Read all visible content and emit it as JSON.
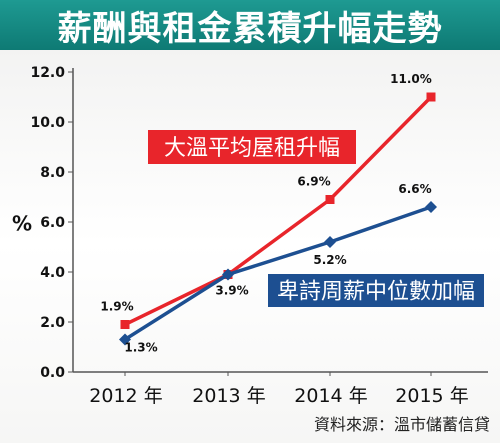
{
  "title": "薪酬與租金累積升幅走勢",
  "source": "資料來源：溫市儲蓄信貸",
  "colors": {
    "title_bg": "#12867f",
    "rent": "#e8252b",
    "wage": "#1d4f91",
    "grid": "#9a9a9a"
  },
  "chart_data": {
    "type": "line",
    "categories": [
      "2012 年",
      "2013 年",
      "2014 年",
      "2015 年"
    ],
    "ylabel": "%",
    "ylim": [
      0,
      12
    ],
    "yticks": [
      "0.0",
      "2.0",
      "4.0",
      "6.0",
      "8.0",
      "10.0",
      "12.0"
    ],
    "grid": false,
    "series": [
      {
        "name": "大溫平均屋租升幅",
        "color": "#e8252b",
        "values": [
          1.9,
          3.9,
          6.9,
          11.0
        ],
        "labels": [
          "1.9%",
          "",
          "6.9%",
          "11.0%"
        ]
      },
      {
        "name": "卑詩周薪中位數加幅",
        "color": "#1d4f91",
        "values": [
          1.3,
          3.9,
          5.2,
          6.6
        ],
        "labels": [
          "1.3%",
          "3.9%",
          "5.2%",
          "6.6%"
        ]
      }
    ]
  }
}
